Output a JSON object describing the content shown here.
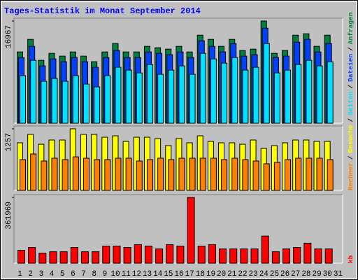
{
  "title": "Tages-Statistik im Monat September 2014",
  "legend_separator": "/",
  "chart_data": [
    {
      "type": "bar",
      "ylim": [
        0,
        16967
      ],
      "yticks": [
        16967
      ],
      "series": [
        {
          "name": "Anfragen",
          "color": "#008040",
          "values": [
            11832,
            13920,
            10440,
            11600,
            11136,
            11832,
            11136,
            10208,
            11832,
            13224,
            11832,
            11832,
            12760,
            12528,
            12296,
            12760,
            11832,
            14616,
            13920,
            12760,
            13920,
            12064,
            12296,
            16967,
            11600,
            12064,
            14616,
            14848,
            12760,
            14616,
            null
          ]
        },
        {
          "name": "Dateien",
          "color": "#0040ff",
          "values": [
            10904,
            12760,
            9512,
            10672,
            10208,
            10904,
            10208,
            9280,
            10904,
            12064,
            10904,
            10904,
            11832,
            11600,
            11368,
            11832,
            10904,
            13688,
            12760,
            11832,
            13224,
            11136,
            11368,
            15776,
            10904,
            11136,
            13456,
            13920,
            11832,
            13224,
            null
          ]
        },
        {
          "name": "Seiten",
          "color": "#00e0ff",
          "values": [
            7888,
            10440,
            6960,
            7424,
            6960,
            7888,
            6496,
            6032,
            7888,
            9280,
            8816,
            8352,
            9744,
            8120,
            8816,
            9512,
            8120,
            11600,
            10672,
            9976,
            10904,
            8816,
            9280,
            13224,
            8352,
            8816,
            9744,
            10440,
            9512,
            10208,
            null
          ]
        }
      ]
    },
    {
      "type": "bar",
      "ylim": [
        0,
        1257
      ],
      "yticks": [
        1257
      ],
      "series": [
        {
          "name": "Besuche",
          "color": "#ffff00",
          "values": [
            971,
            1142,
            942,
            1028,
            1028,
            1257,
            1142,
            1142,
            1085,
            1114,
            1000,
            1085,
            1085,
            1057,
            914,
            1057,
            971,
            1114,
            1000,
            971,
            971,
            942,
            1028,
            857,
            914,
            971,
            1028,
            1028,
            1000,
            1000,
            null
          ]
        },
        {
          "name": "Rechner",
          "color": "#ff8000",
          "values": [
            628,
            743,
            600,
            657,
            628,
            685,
            657,
            628,
            628,
            657,
            657,
            600,
            628,
            657,
            628,
            657,
            657,
            657,
            657,
            628,
            657,
            628,
            600,
            543,
            571,
            628,
            657,
            657,
            657,
            628,
            null
          ]
        }
      ]
    },
    {
      "type": "bar",
      "ylim": [
        0,
        361969
      ],
      "yticks": [
        361969
      ],
      "categories": [
        "1",
        "2",
        "3",
        "4",
        "5",
        "6",
        "7",
        "8",
        "9",
        "10",
        "11",
        "12",
        "13",
        "14",
        "15",
        "16",
        "17",
        "18",
        "19",
        "20",
        "21",
        "22",
        "23",
        "24",
        "25",
        "26",
        "27",
        "28",
        "29",
        "30",
        "31"
      ],
      "category_colors": [
        "#000000",
        "#000000",
        "#000000",
        "#000000",
        "#000000",
        "#008040",
        "#008040",
        "#000000",
        "#000000",
        "#000000",
        "#000000",
        "#000000",
        "#008040",
        "#008040",
        "#000000",
        "#000000",
        "#000000",
        "#000000",
        "#000000",
        "#008040",
        "#008040",
        "#000000",
        "#000000",
        "#000000",
        "#000000",
        "#000000",
        "#008040",
        "#008040",
        "#000000",
        "#000000",
        "#000000"
      ],
      "series": [
        {
          "name": "kb",
          "color": "#ff0000",
          "values": [
            70812,
            86548,
            55076,
            62944,
            62944,
            86548,
            62944,
            62944,
            94416,
            94416,
            86548,
            102284,
            94416,
            78680,
            102284,
            94416,
            361969,
            94416,
            102284,
            78680,
            78680,
            78680,
            78680,
            149492,
            62944,
            78680,
            86548,
            110152,
            78680,
            78680,
            null
          ]
        }
      ]
    }
  ]
}
